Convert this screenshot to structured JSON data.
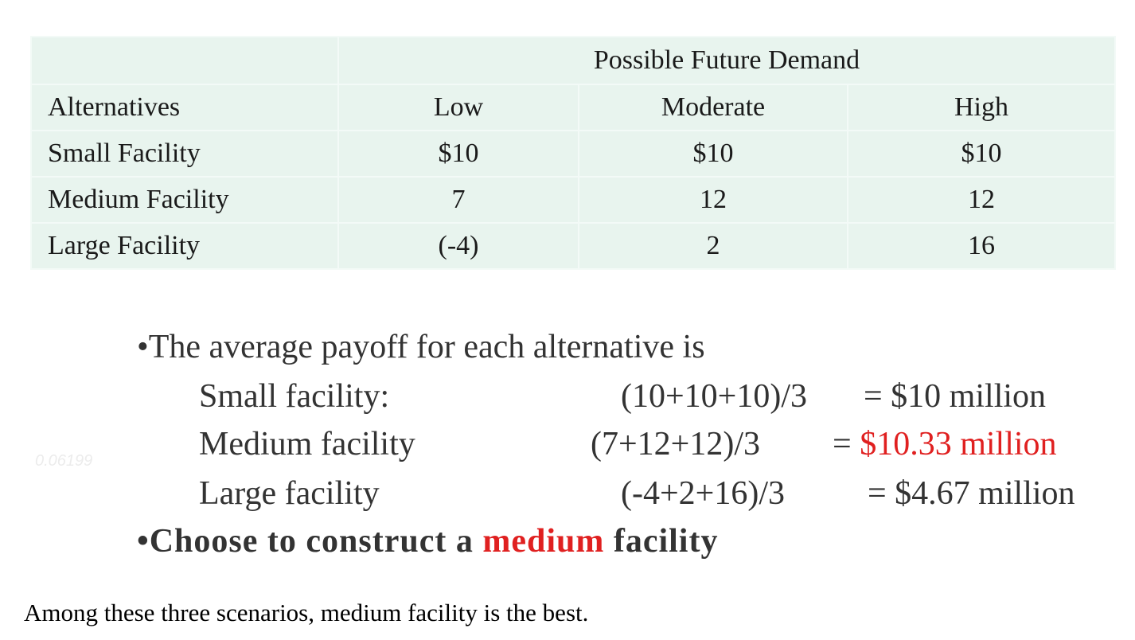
{
  "table": {
    "group_header": "Possible Future Demand",
    "columns": [
      "Alternatives",
      "Low",
      "Moderate",
      "High"
    ],
    "rows": [
      {
        "name": "Small Facility",
        "values": [
          "$10",
          "$10",
          "$10"
        ]
      },
      {
        "name": "Medium Facility",
        "values": [
          "7",
          "12",
          "12"
        ]
      },
      {
        "name": "Large Facility",
        "values": [
          "(-4)",
          "2",
          "16"
        ]
      }
    ]
  },
  "explanation": {
    "intro": "•The average payoff for each alternative is",
    "items": [
      {
        "label": "Small facility:",
        "formula": "(10+10+10)/3",
        "result": "= $10 million"
      },
      {
        "label": "Medium facility",
        "formula": "(7+12+12)/3",
        "result_prefix": "= ",
        "result": "$10.33 million"
      },
      {
        "label": "Large  facility",
        "formula": "(-4+2+16)/3",
        "result": "= $4.67 million"
      }
    ],
    "conclusion_pre": "•Choose to construct a ",
    "conclusion_highlight": "medium",
    "conclusion_post": " facility",
    "highlight_color": "#e02020"
  },
  "watermark": "0.06199",
  "caption": "Among these three scenarios, medium facility is the best."
}
